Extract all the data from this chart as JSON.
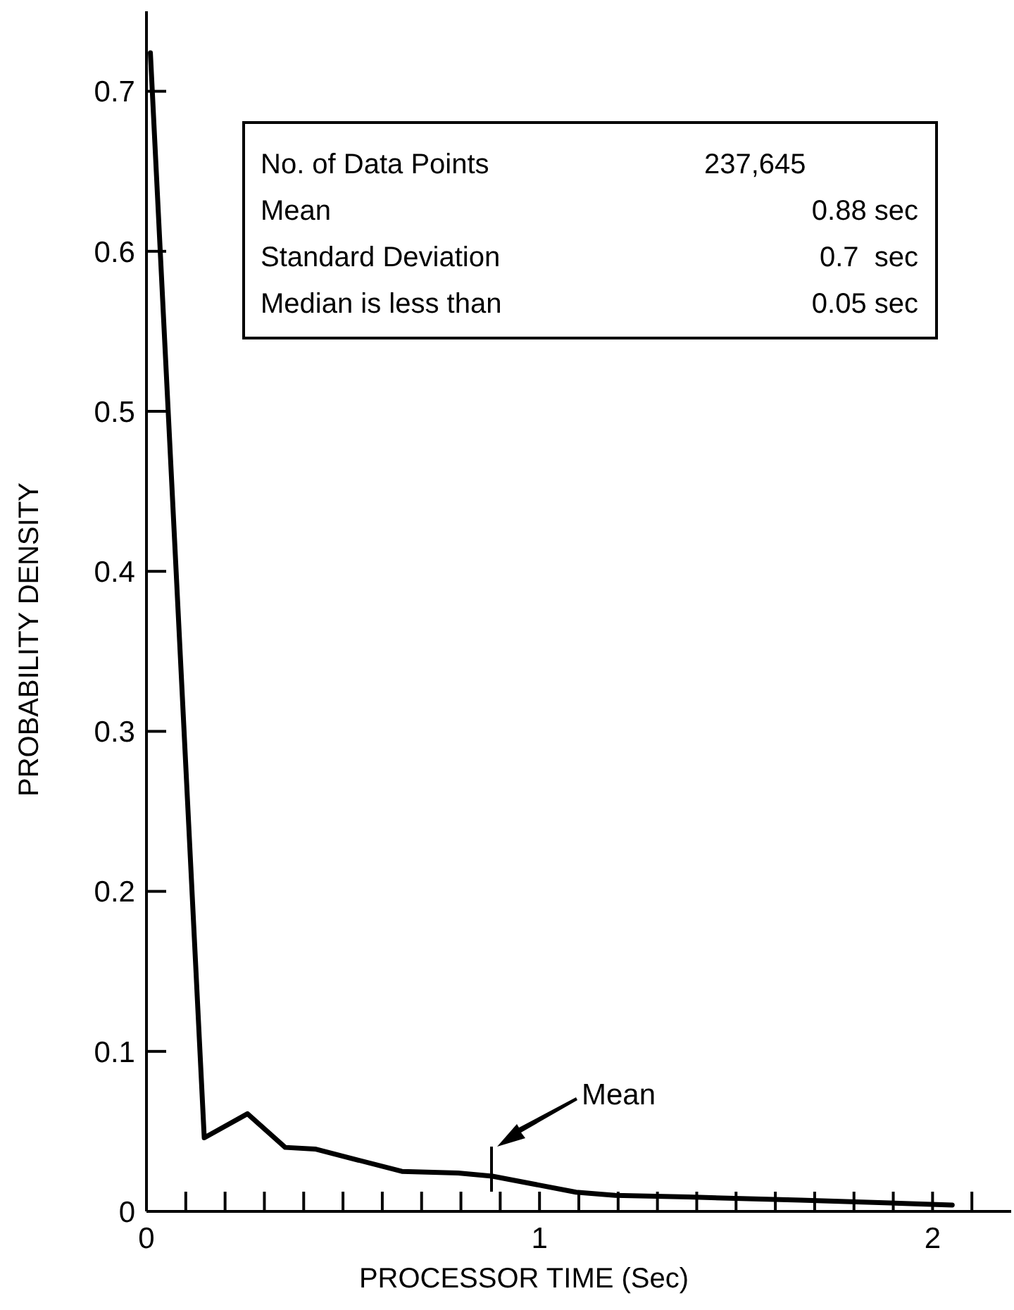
{
  "chart_data": {
    "type": "line",
    "xlabel": "PROCESSOR TIME (Sec)",
    "ylabel": "PROBABILITY DENSITY",
    "x": [
      0.01,
      0.147,
      0.257,
      0.353,
      0.429,
      0.65,
      0.793,
      0.88,
      1.093,
      1.193,
      1.379,
      1.664,
      2.05
    ],
    "series": [
      {
        "color": "#000000",
        "values": [
          0.724,
          0.046,
          0.061,
          0.04,
          0.039,
          0.025,
          0.024,
          0.022,
          0.012,
          0.01,
          0.009,
          0.007,
          0.004
        ]
      }
    ],
    "xlim": [
      0,
      2.2
    ],
    "ylim": [
      0,
      0.75
    ],
    "xticks": [
      0,
      {
        "value": 0.1,
        "label": null
      },
      {
        "value": 0.2,
        "label": null
      },
      {
        "value": 0.3,
        "label": null
      },
      {
        "value": 0.4,
        "label": null
      },
      {
        "value": 0.5,
        "label": null
      },
      {
        "value": 0.6,
        "label": null
      },
      {
        "value": 0.7,
        "label": null
      },
      {
        "value": 0.8,
        "label": null
      },
      {
        "value": 0.9,
        "label": null
      },
      1,
      {
        "value": 1.1,
        "label": null
      },
      {
        "value": 1.2,
        "label": null
      },
      {
        "value": 1.3,
        "label": null
      },
      {
        "value": 1.4,
        "label": null
      },
      {
        "value": 1.5,
        "label": null
      },
      {
        "value": 1.6,
        "label": null
      },
      {
        "value": 1.7,
        "label": null
      },
      {
        "value": 1.8,
        "label": null
      },
      {
        "value": 1.9,
        "label": null
      },
      2,
      {
        "value": 2.1,
        "label": null
      }
    ],
    "yticks": [
      0,
      0.1,
      0.2,
      0.3,
      0.4,
      0.5,
      0.6,
      0.7
    ],
    "annotations": [
      "No. of Data Points",
      "237,645",
      "Mean",
      "0.88 sec",
      "Standard Deviation",
      "0.7  sec",
      "Median is less than",
      "0.05 sec",
      "Mean"
    ],
    "grid": false,
    "marker": "none",
    "line_style": "solid"
  }
}
